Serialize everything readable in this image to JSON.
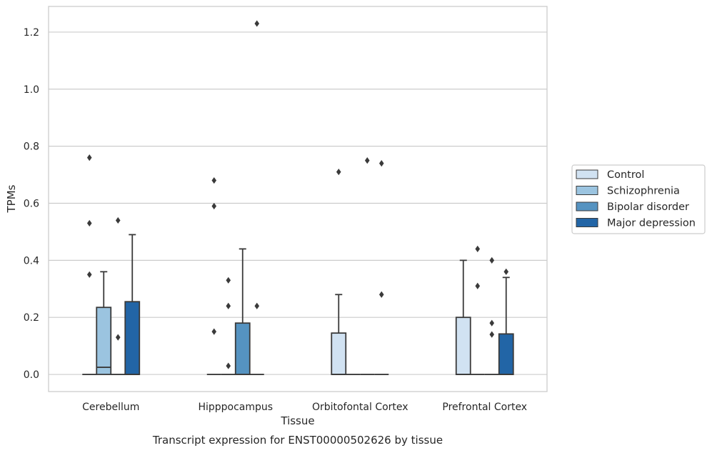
{
  "chart_data": {
    "type": "box",
    "title": "",
    "caption": "Transcript expression for ENST00000502626 by tissue",
    "xlabel": "Tissue",
    "ylabel": "TPMs",
    "ylim": [
      -0.06,
      1.29
    ],
    "yticks": [
      "0.0",
      "0.2",
      "0.4",
      "0.6",
      "0.8",
      "1.0",
      "1.2"
    ],
    "grid": "horizontal",
    "legend_position": "right",
    "categories": [
      "Cerebellum",
      "Hipppocampus",
      "Orbitofontal Cortex",
      "Prefrontal Cortex"
    ],
    "series": [
      {
        "name": "Control",
        "color": "#d1e2f2",
        "boxes": [
          {
            "q1": 0,
            "median": 0,
            "q3": 0,
            "whisker_low": 0,
            "whisker_high": 0,
            "outliers": [
              0.76,
              0.53,
              0.35
            ]
          },
          {
            "q1": 0,
            "median": 0,
            "q3": 0,
            "whisker_low": 0,
            "whisker_high": 0,
            "outliers": [
              0.68,
              0.59,
              0.15
            ]
          },
          {
            "q1": 0,
            "median": 0,
            "q3": 0.145,
            "whisker_low": 0,
            "whisker_high": 0.28,
            "outliers": [
              0.71
            ]
          },
          {
            "q1": 0,
            "median": 0,
            "q3": 0.2,
            "whisker_low": 0,
            "whisker_high": 0.4,
            "outliers": []
          }
        ]
      },
      {
        "name": "Schizophrenia",
        "color": "#9bc4e0",
        "boxes": [
          {
            "q1": 0,
            "median": 0.025,
            "q3": 0.235,
            "whisker_low": 0,
            "whisker_high": 0.36,
            "outliers": []
          },
          {
            "q1": 0,
            "median": 0,
            "q3": 0,
            "whisker_low": 0,
            "whisker_high": 0,
            "outliers": [
              0.33,
              0.24,
              0.03
            ]
          },
          {
            "q1": 0,
            "median": 0,
            "q3": 0,
            "whisker_low": 0,
            "whisker_high": 0,
            "outliers": []
          },
          {
            "q1": 0,
            "median": 0,
            "q3": 0,
            "whisker_low": 0,
            "whisker_high": 0,
            "outliers": [
              0.44,
              0.31
            ]
          }
        ]
      },
      {
        "name": "Bipolar disorder",
        "color": "#5593c1",
        "boxes": [
          {
            "q1": 0,
            "median": 0,
            "q3": 0,
            "whisker_low": 0,
            "whisker_high": 0,
            "outliers": [
              0.54,
              0.13
            ]
          },
          {
            "q1": 0,
            "median": 0,
            "q3": 0.18,
            "whisker_low": 0,
            "whisker_high": 0.44,
            "outliers": []
          },
          {
            "q1": 0,
            "median": 0,
            "q3": 0,
            "whisker_low": 0,
            "whisker_high": 0,
            "outliers": [
              0.75
            ]
          },
          {
            "q1": 0,
            "median": 0,
            "q3": 0,
            "whisker_low": 0,
            "whisker_high": 0,
            "outliers": [
              0.4,
              0.18,
              0.14
            ]
          }
        ]
      },
      {
        "name": "Major depression",
        "color": "#2265a6",
        "boxes": [
          {
            "q1": 0,
            "median": 0,
            "q3": 0.255,
            "whisker_low": 0,
            "whisker_high": 0.49,
            "outliers": []
          },
          {
            "q1": 0,
            "median": 0,
            "q3": 0,
            "whisker_low": 0,
            "whisker_high": 0,
            "outliers": [
              1.23,
              0.24
            ]
          },
          {
            "q1": 0,
            "median": 0,
            "q3": 0,
            "whisker_low": 0,
            "whisker_high": 0,
            "outliers": [
              0.74,
              0.28
            ]
          },
          {
            "q1": 0,
            "median": 0,
            "q3": 0.142,
            "whisker_low": 0,
            "whisker_high": 0.34,
            "outliers": [
              0.36
            ]
          }
        ]
      }
    ]
  }
}
